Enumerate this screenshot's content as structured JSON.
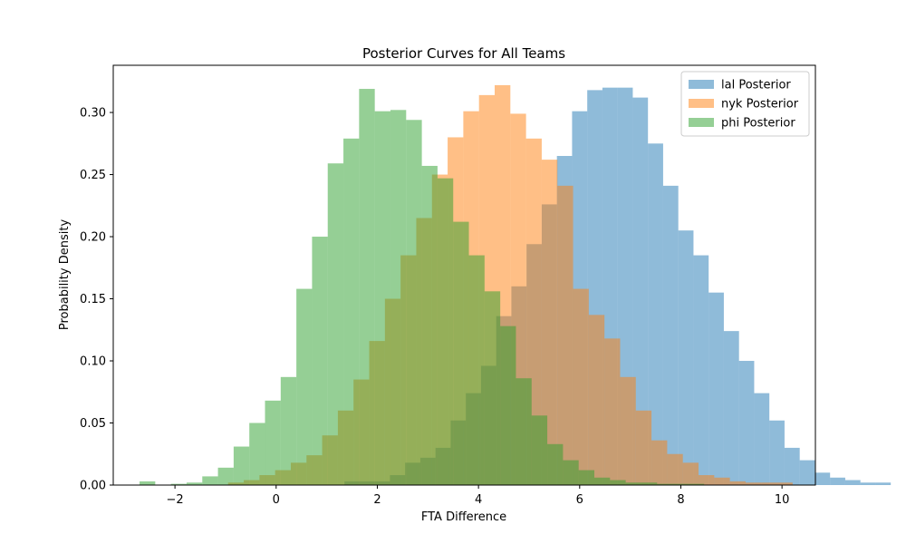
{
  "chart_data": {
    "type": "histogram",
    "title": "Posterior Curves for All Teams",
    "xlabel": "FTA Difference",
    "ylabel": "Probability Density",
    "xlim": [
      -3.22,
      10.66
    ],
    "ylim": [
      0,
      0.338
    ],
    "xticks": [
      -2,
      0,
      2,
      4,
      6,
      8,
      10
    ],
    "xtick_labels": [
      "−2",
      "0",
      "2",
      "4",
      "6",
      "8",
      "10"
    ],
    "yticks": [
      0,
      0.05,
      0.1,
      0.15,
      0.2,
      0.25,
      0.3
    ],
    "ytick_labels": [
      "0.00",
      "0.05",
      "0.10",
      "0.15",
      "0.20",
      "0.25",
      "0.30"
    ],
    "grid": false,
    "legend_position": "top-right",
    "series": [
      {
        "name": "lal Posterior",
        "color": "#1f77b4",
        "opacity": 0.5,
        "bin_start": 1.35,
        "bin_width": 0.3,
        "values": [
          0.003,
          0.003,
          0.003,
          0.008,
          0.018,
          0.022,
          0.03,
          0.052,
          0.074,
          0.096,
          0.136,
          0.16,
          0.194,
          0.226,
          0.265,
          0.301,
          0.318,
          0.32,
          0.32,
          0.312,
          0.275,
          0.241,
          0.205,
          0.185,
          0.155,
          0.124,
          0.1,
          0.074,
          0.052,
          0.03,
          0.02,
          0.01,
          0.006,
          0.004,
          0.002,
          0.002
        ]
      },
      {
        "name": "nyk Posterior",
        "color": "#ff7f0e",
        "opacity": 0.5,
        "bin_start": -0.95,
        "bin_width": 0.31,
        "values": [
          0.002,
          0.004,
          0.008,
          0.012,
          0.018,
          0.024,
          0.04,
          0.06,
          0.085,
          0.116,
          0.15,
          0.185,
          0.215,
          0.25,
          0.28,
          0.301,
          0.314,
          0.322,
          0.299,
          0.279,
          0.262,
          0.241,
          0.158,
          0.137,
          0.118,
          0.087,
          0.06,
          0.036,
          0.025,
          0.018,
          0.008,
          0.006,
          0.003,
          0.002,
          0.002,
          0.002
        ]
      },
      {
        "name": "phi Posterior",
        "color": "#2ca02c",
        "opacity": 0.5,
        "bin_start": -2.7,
        "bin_width": 0.31,
        "values": [
          0.003,
          0.0,
          0.001,
          0.002,
          0.007,
          0.014,
          0.031,
          0.05,
          0.068,
          0.087,
          0.158,
          0.2,
          0.259,
          0.279,
          0.319,
          0.301,
          0.302,
          0.294,
          0.257,
          0.247,
          0.212,
          0.185,
          0.156,
          0.128,
          0.086,
          0.056,
          0.033,
          0.02,
          0.012,
          0.006,
          0.004,
          0.002,
          0.002,
          0.001,
          0.001,
          0.001
        ]
      }
    ]
  }
}
